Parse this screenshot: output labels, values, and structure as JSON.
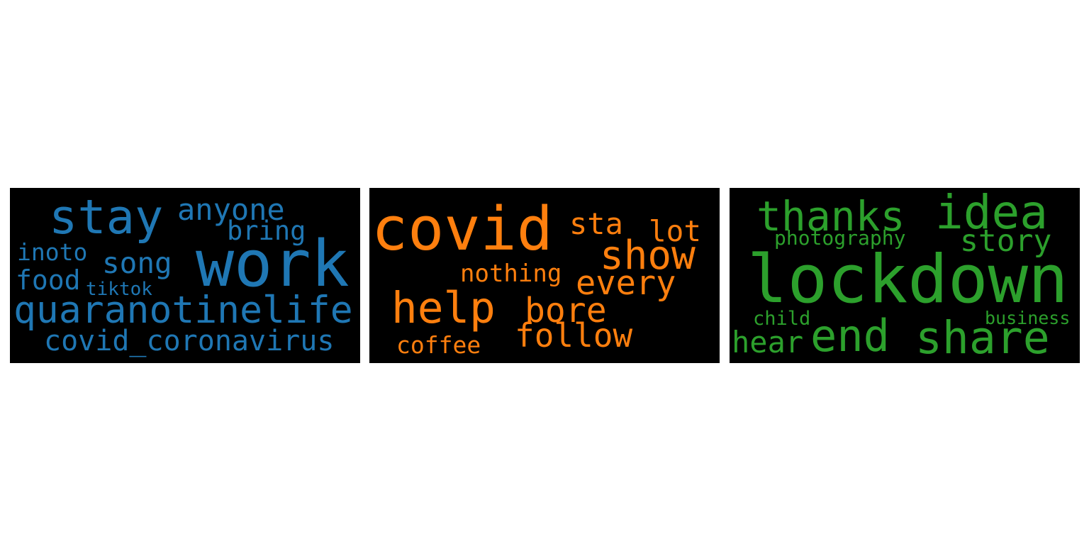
{
  "clouds": [
    {
      "color": "#1f77b4",
      "words": [
        {
          "text": "stay"
        },
        {
          "text": "anyone"
        },
        {
          "text": "bring"
        },
        {
          "text": "inoto"
        },
        {
          "text": "song"
        },
        {
          "text": "work"
        },
        {
          "text": "food"
        },
        {
          "text": "tiktok"
        },
        {
          "text": "quaranotinelife"
        },
        {
          "text": "covid_coronavirus"
        }
      ]
    },
    {
      "color": "#ff7f0e",
      "words": [
        {
          "text": "covid"
        },
        {
          "text": "sta"
        },
        {
          "text": "lot"
        },
        {
          "text": "show"
        },
        {
          "text": "nothing"
        },
        {
          "text": "every"
        },
        {
          "text": "help"
        },
        {
          "text": "bore"
        },
        {
          "text": "follow"
        },
        {
          "text": "coffee"
        }
      ]
    },
    {
      "color": "#2ca02c",
      "words": [
        {
          "text": "thanks"
        },
        {
          "text": "idea"
        },
        {
          "text": "photography"
        },
        {
          "text": "story"
        },
        {
          "text": "lockdown"
        },
        {
          "text": "child"
        },
        {
          "text": "business"
        },
        {
          "text": "hear"
        },
        {
          "text": "end"
        },
        {
          "text": "share"
        }
      ]
    }
  ]
}
